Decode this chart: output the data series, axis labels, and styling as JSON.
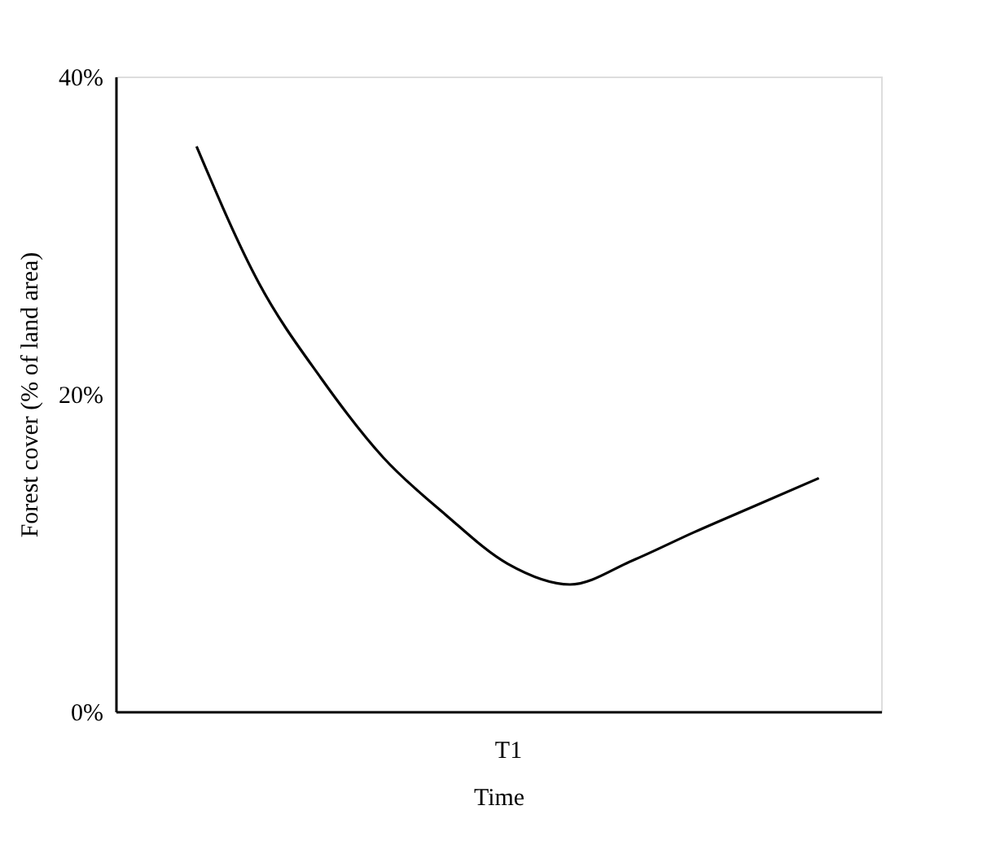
{
  "chart_data": {
    "type": "line",
    "xlabel": "Time",
    "ylabel": "Forest cover  (% of land area)",
    "categories": [
      null,
      null,
      null,
      null,
      null,
      "T1",
      null,
      null,
      null,
      null,
      null
    ],
    "series": [
      {
        "color": "#000000",
        "values": [
          35.6,
          27,
          21,
          16,
          12.4,
          9.3,
          8.0,
          9.5,
          11.3,
          13,
          14.7
        ]
      }
    ],
    "ylim": [
      0,
      40
    ],
    "yticks": [
      {
        "value": 0,
        "label": "0%"
      },
      {
        "value": 20,
        "label": "20%"
      },
      {
        "value": 40,
        "label": "40%"
      }
    ],
    "grid": false,
    "legend": false,
    "marker": "none",
    "line_style": "solid"
  }
}
